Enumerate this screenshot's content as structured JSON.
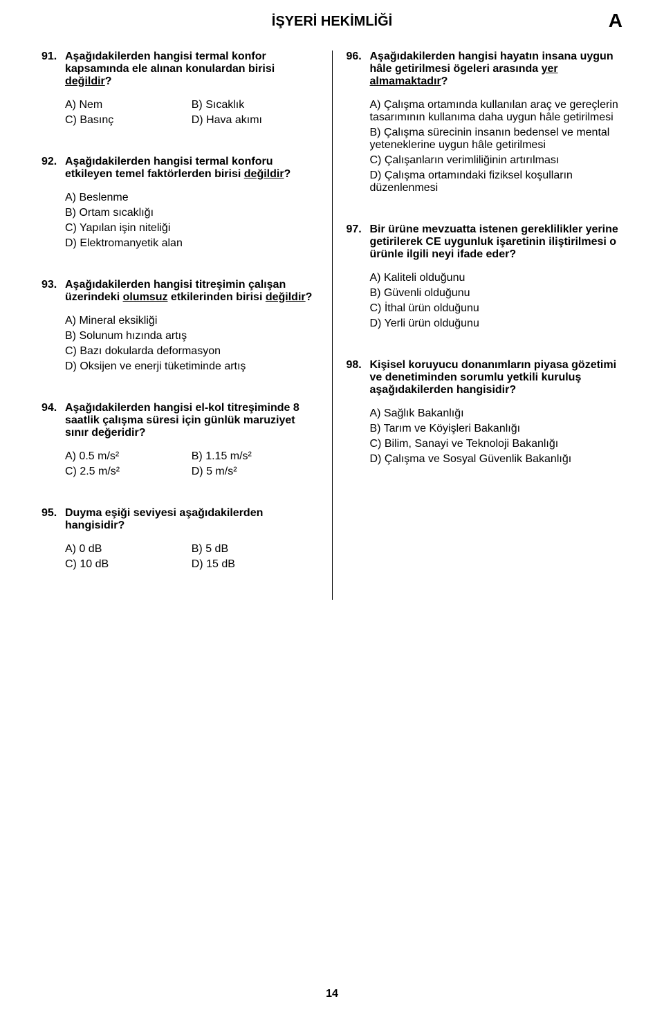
{
  "header": {
    "title": "İŞYERİ HEKİMLİĞİ",
    "booklet_code": "A"
  },
  "page_number": "14",
  "q91": {
    "num": "91.",
    "stem_parts": [
      "Aşağıdakilerden hangisi termal konfor kapsamında ele alınan konulardan birisi ",
      "değildir",
      "?"
    ],
    "a": "A) Nem",
    "b": "B) Sıcaklık",
    "c": "C) Basınç",
    "d": "D) Hava akımı"
  },
  "q92": {
    "num": "92.",
    "stem_parts": [
      "Aşağıdakilerden hangisi termal konforu etkileyen temel faktörlerden birisi ",
      "değildir",
      "?"
    ],
    "a": "A) Beslenme",
    "b": "B) Ortam sıcaklığı",
    "c": "C) Yapılan işin niteliği",
    "d": "D) Elektromanyetik alan"
  },
  "q93": {
    "num": "93.",
    "stem_parts": [
      "Aşağıdakilerden hangisi titreşimin çalışan üzerindeki ",
      "olumsuz",
      " etkilerinden birisi ",
      "değildir",
      "?"
    ],
    "a": "A) Mineral eksikliği",
    "b": "B) Solunum hızında artış",
    "c": "C) Bazı dokularda deformasyon",
    "d": "D) Oksijen ve enerji tüketiminde artış"
  },
  "q94": {
    "num": "94.",
    "stem": "Aşağıdakilerden hangisi el-kol titreşiminde 8 saatlik çalışma süresi için günlük maruziyet sınır değeridir?",
    "a": "A) 0.5 m/s²",
    "b": "B) 1.15 m/s²",
    "c": "C) 2.5 m/s²",
    "d": "D) 5 m/s²"
  },
  "q95": {
    "num": "95.",
    "stem": "Duyma eşiği seviyesi aşağıdakilerden hangisidir?",
    "a": "A) 0 dB",
    "b": "B) 5 dB",
    "c": "C) 10 dB",
    "d": "D) 15 dB"
  },
  "q96": {
    "num": "96.",
    "stem_parts": [
      "Aşağıdakilerden hangisi hayatın insana uygun hâle getirilmesi ögeleri arasında ",
      "yer almamaktadır",
      "?"
    ],
    "a": "A) Çalışma ortamında kullanılan araç ve gereçlerin tasarımının kullanıma daha uygun hâle getirilmesi",
    "b": "B) Çalışma sürecinin insanın bedensel ve mental yeteneklerine uygun hâle getirilmesi",
    "c": "C) Çalışanların verimliliğinin artırılması",
    "d": "D) Çalışma ortamındaki fiziksel koşulların düzenlenmesi"
  },
  "q97": {
    "num": "97.",
    "stem": "Bir ürüne mevzuatta istenen gereklilikler yerine getirilerek CE uygunluk işaretinin iliştirilmesi o ürünle ilgili neyi ifade eder?",
    "a": "A) Kaliteli olduğunu",
    "b": "B) Güvenli olduğunu",
    "c": "C) İthal ürün olduğunu",
    "d": "D) Yerli ürün olduğunu"
  },
  "q98": {
    "num": "98.",
    "stem": "Kişisel koruyucu donanımların piyasa gözetimi ve denetiminden sorumlu yetkili kuruluş aşağıdakilerden hangisidir?",
    "a": "A) Sağlık Bakanlığı",
    "b": "B) Tarım ve Köyişleri Bakanlığı",
    "c": "C) Bilim, Sanayi ve Teknoloji Bakanlığı",
    "d": "D) Çalışma ve Sosyal Güvenlik Bakanlığı"
  }
}
